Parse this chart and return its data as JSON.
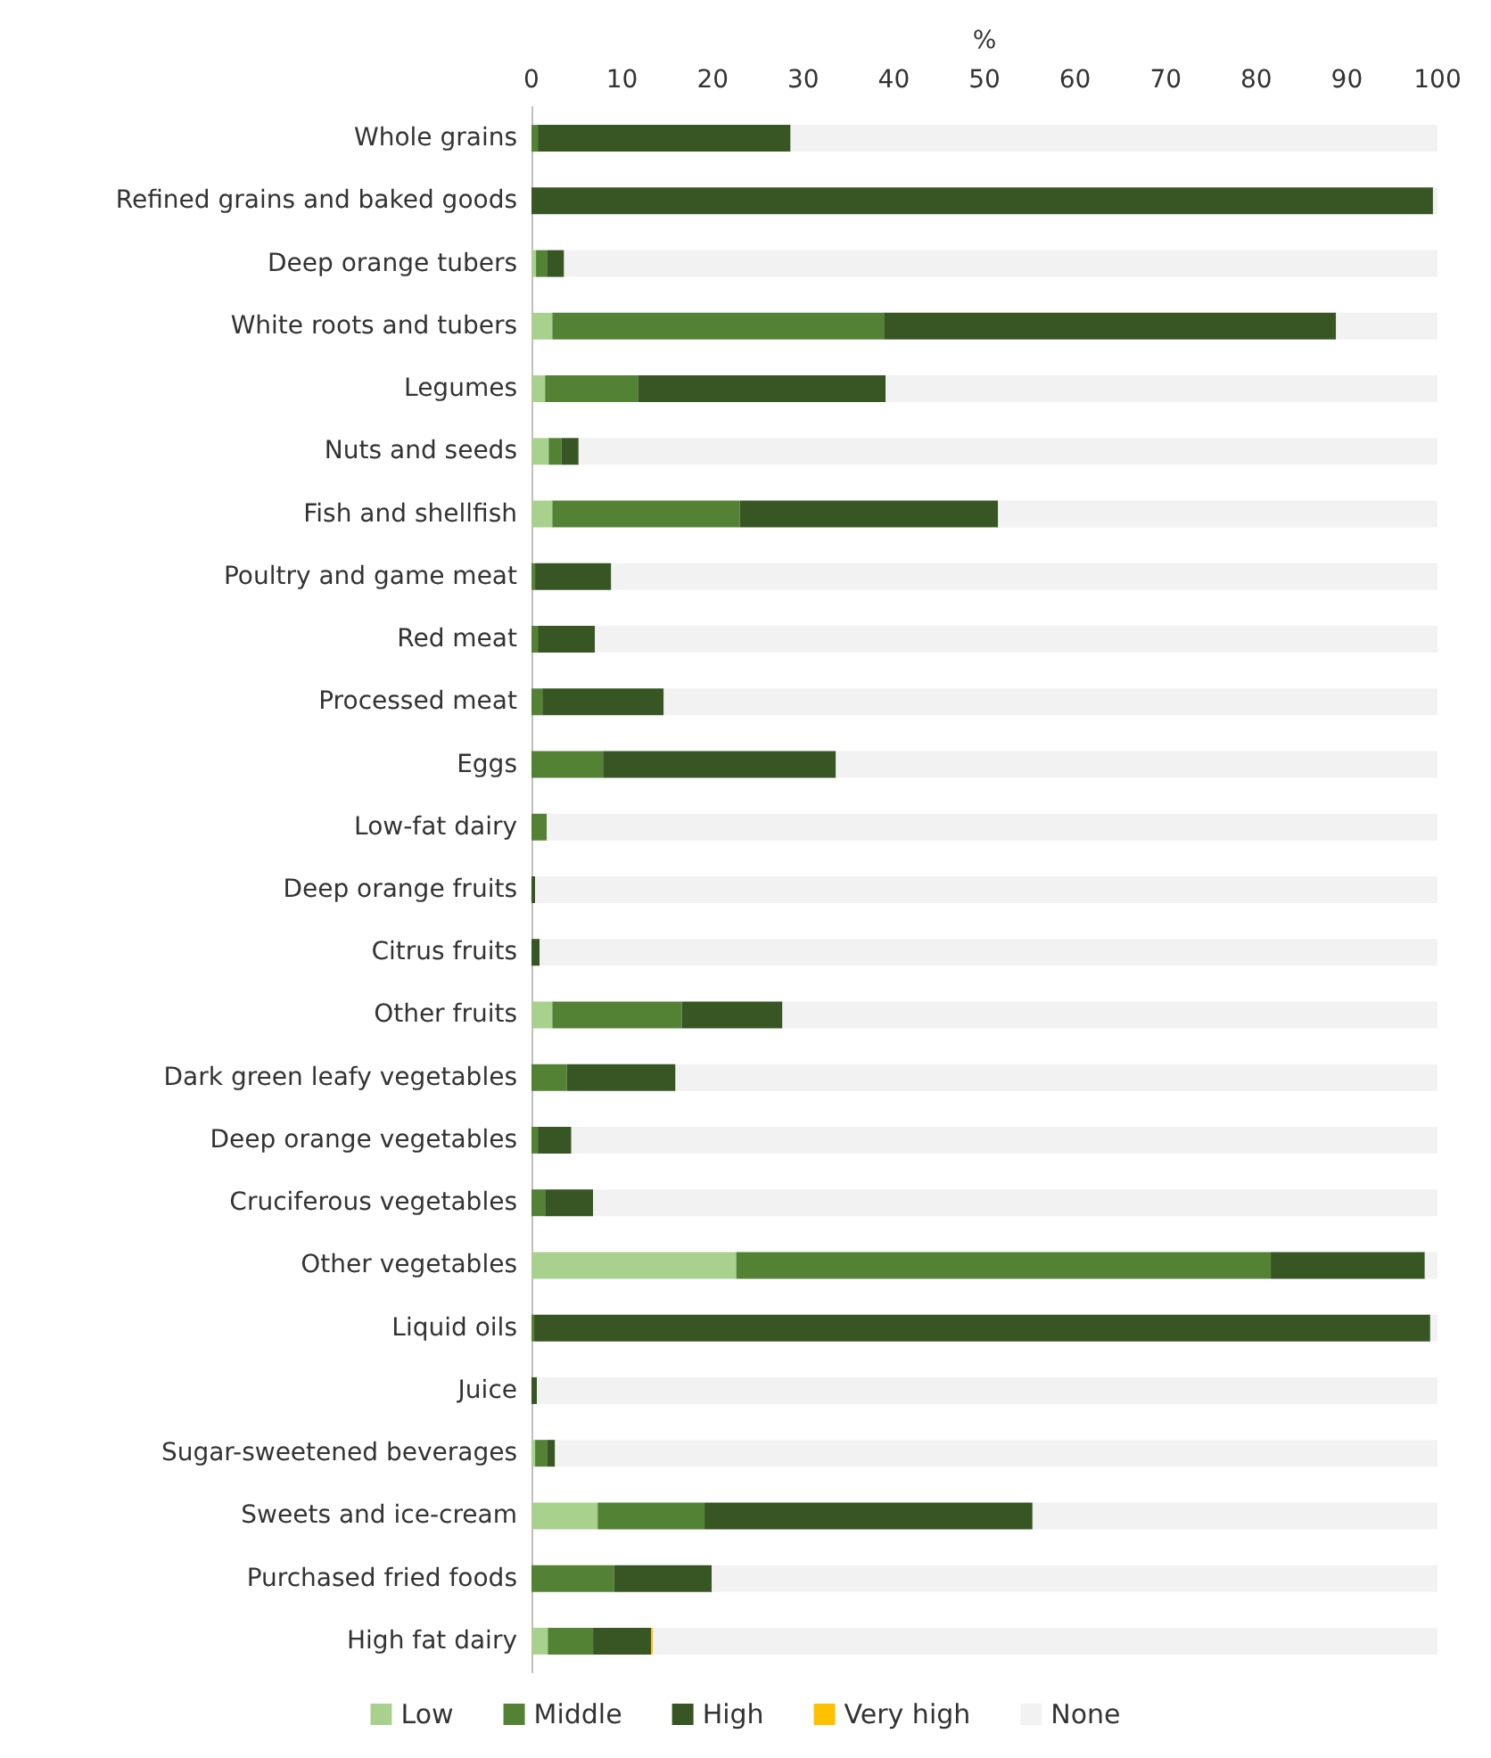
{
  "chart_data": {
    "type": "bar",
    "orientation": "horizontal",
    "stacked": true,
    "xlabel": "%",
    "xlim": [
      0,
      100
    ],
    "xticks": [
      0,
      10,
      20,
      30,
      40,
      50,
      60,
      70,
      80,
      90,
      100
    ],
    "grid": false,
    "legend": "bottom",
    "categories": [
      "Whole grains",
      "Refined grains and baked goods",
      "Deep orange tubers",
      "White roots and tubers",
      "Legumes",
      "Nuts and seeds",
      "Fish and shellfish",
      "Poultry and game meat",
      "Red meat",
      "Processed meat",
      "Eggs",
      "Low-fat dairy",
      "Deep orange fruits",
      "Citrus fruits",
      "Other fruits",
      "Dark green leafy vegetables",
      "Deep orange vegetables",
      "Cruciferous vegetables",
      "Other vegetables",
      "Liquid oils",
      "Juice",
      "Sugar-sweetened beverages",
      "Sweets and ice-cream",
      "Purchased fried foods",
      "High fat dairy"
    ],
    "series": [
      {
        "name": "Low",
        "color": "#a9d18e",
        "values": [
          0,
          0,
          0.5,
          2.3,
          1.5,
          1.9,
          2.3,
          0,
          0,
          0,
          0,
          0,
          0,
          0,
          2.3,
          0,
          0,
          0,
          22.6,
          0,
          0,
          0.4,
          7.3,
          0,
          1.8
        ]
      },
      {
        "name": "Middle",
        "color": "#548235",
        "values": [
          0.7,
          0,
          1.2,
          36.6,
          10.3,
          1.4,
          20.7,
          0.4,
          0.7,
          1.2,
          7.9,
          1.7,
          0,
          0,
          14.3,
          3.9,
          0.7,
          1.5,
          59.0,
          0.3,
          0,
          1.3,
          11.8,
          9.1,
          5.0
        ]
      },
      {
        "name": "High",
        "color": "#375623",
        "values": [
          27.9,
          99.5,
          1.9,
          49.9,
          27.3,
          1.9,
          28.5,
          8.4,
          6.3,
          13.4,
          25.7,
          0,
          0.4,
          0.9,
          11.1,
          12.0,
          3.7,
          5.3,
          17.0,
          98.9,
          0.6,
          0.9,
          36.2,
          10.8,
          6.4
        ]
      },
      {
        "name": "Very high",
        "color": "#ffc000",
        "values": [
          0,
          0,
          0,
          0,
          0,
          0,
          0,
          0,
          0,
          0,
          0,
          0,
          0,
          0,
          0,
          0,
          0,
          0,
          0,
          0,
          0,
          0,
          0,
          0,
          0.2
        ]
      },
      {
        "name": "None",
        "color": "#f2f2f2",
        "values": [
          71.4,
          0.5,
          96.4,
          11.2,
          60.9,
          94.8,
          48.5,
          91.2,
          93.0,
          85.4,
          66.4,
          98.3,
          99.6,
          99.1,
          72.3,
          84.1,
          95.6,
          93.2,
          1.4,
          0.8,
          99.4,
          97.4,
          44.7,
          80.1,
          86.6
        ]
      }
    ]
  }
}
